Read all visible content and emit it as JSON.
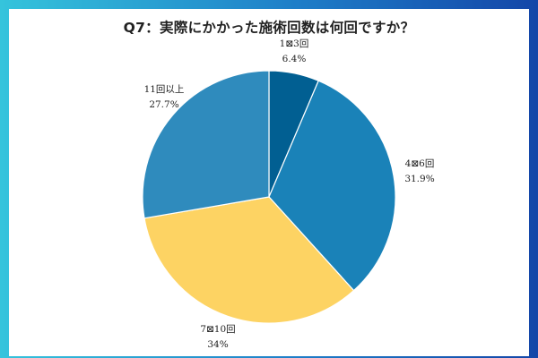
{
  "chart_data": {
    "type": "pie",
    "title": "Q7：実際にかかった施術回数は何回ですか？",
    "slices": [
      {
        "label": "1〜3回",
        "display_label": "1⊠3回",
        "value": 6.4,
        "value_label": "6.4%",
        "color": "#015f92"
      },
      {
        "label": "4〜6回",
        "display_label": "4⊠6回",
        "value": 31.9,
        "value_label": "31.9%",
        "color": "#1a82b8"
      },
      {
        "label": "7〜10回",
        "display_label": "7⊠10回",
        "value": 34,
        "value_label": "34%",
        "color": "#fdd363"
      },
      {
        "label": "11回以上",
        "display_label": "11回以上",
        "value": 27.7,
        "value_label": "27.7%",
        "color": "#2f8bbd"
      }
    ],
    "start_angle": "top",
    "direction": "clockwise",
    "legend": "none"
  }
}
